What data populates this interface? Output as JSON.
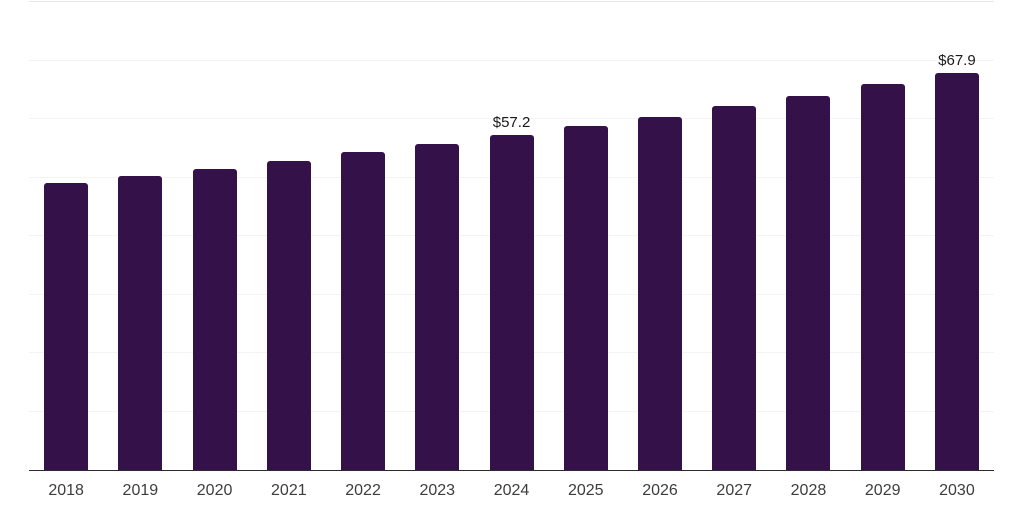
{
  "chart_data": {
    "type": "bar",
    "title": "",
    "categories": [
      "2018",
      "2019",
      "2020",
      "2021",
      "2022",
      "2023",
      "2024",
      "2025",
      "2026",
      "2027",
      "2028",
      "2029",
      "2030"
    ],
    "values": [
      49.0,
      50.2,
      51.5,
      52.9,
      54.3,
      55.8,
      57.2,
      58.8,
      60.3,
      62.2,
      63.9,
      66.0,
      67.9
    ],
    "data_labels": {
      "2024": "$57.2",
      "2030": "$67.9"
    },
    "xlabel": "",
    "ylabel": "",
    "ylim": [
      0,
      80
    ],
    "grid_step": 10,
    "grid": true,
    "legend": "none",
    "colors": {
      "bar": "#351149",
      "value_label": "#1a1a1a",
      "axis_label": "#3d3d3d",
      "gridline": "#f4f4f4",
      "top_gridline": "#e8e8e8",
      "axis_line": "#2b2b2b",
      "background": "#ffffff"
    }
  }
}
